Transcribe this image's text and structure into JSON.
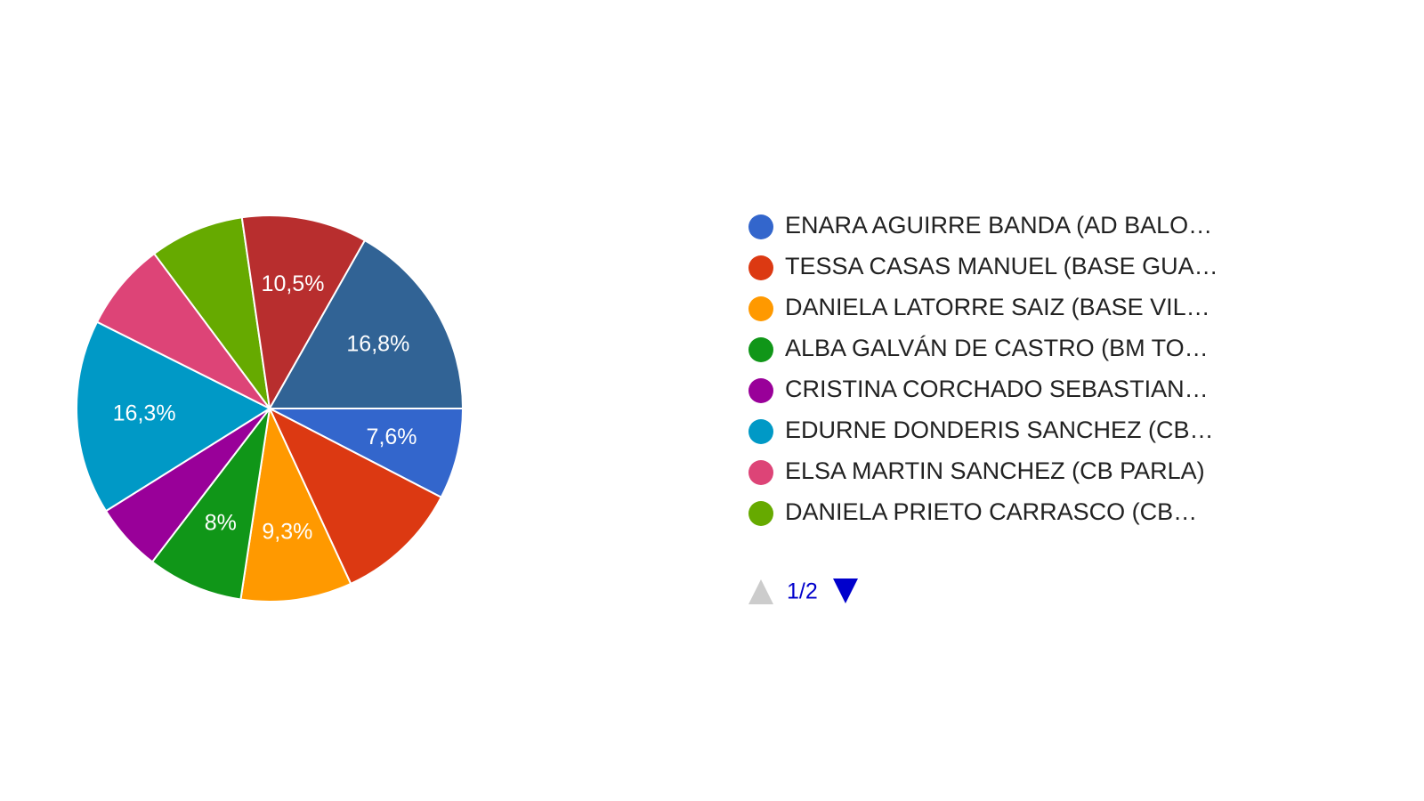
{
  "chart_data": {
    "type": "pie",
    "categories": [
      "ENARA AGUIRRE BANDA (AD BALO…",
      "TESSA CASAS MANUEL (BASE GUA…",
      "DANIELA LATORRE SAIZ (BASE VIL…",
      "ALBA GALVÁN DE CASTRO (BM TO…",
      "CRISTINA CORCHADO SEBASTIAN…",
      "EDURNE DONDERIS SANCHEZ (CB…",
      "ELSA MARTIN SANCHEZ (CB PARLA)",
      "DANIELA PRIETO CARRASCO (CB…",
      null,
      null
    ],
    "values": [
      7.6,
      10.5,
      9.3,
      8,
      5.7,
      16.3,
      7.4,
      7.9,
      10.5,
      16.8
    ],
    "value_labels": [
      "7,6%",
      null,
      "9,3%",
      "8%",
      null,
      "16,3%",
      null,
      null,
      "10,5%",
      "16,8%"
    ],
    "colors": [
      "#3366cc",
      "#dc3912",
      "#ff9900",
      "#109618",
      "#990099",
      "#0099c6",
      "#dd4477",
      "#66aa00",
      "#b82e2e",
      "#316395"
    ],
    "legend_page": "1/2"
  }
}
